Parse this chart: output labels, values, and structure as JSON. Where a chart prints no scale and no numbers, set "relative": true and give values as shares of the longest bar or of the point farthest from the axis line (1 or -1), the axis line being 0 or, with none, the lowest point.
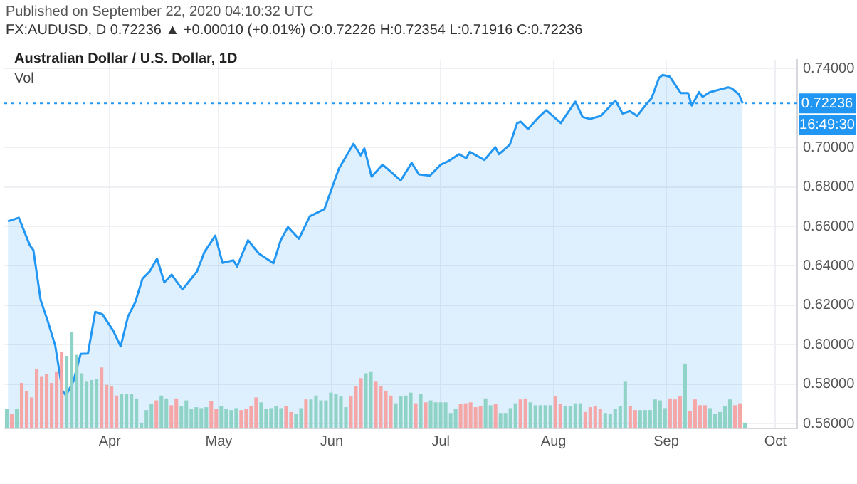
{
  "chart_data": [
    {
      "type": "area",
      "title": "Australian Dollar / U.S. Dollar, 1D",
      "subtitle": "FX:AUDUSD, D 0.72236 ▲ +0.00010 (+0.01%) O:0.72226 H:0.72354 L:0.71916 C:0.72236",
      "annotations": [
        "Published on September 22, 2020 04:10:32 UTC",
        "16:49:30"
      ],
      "x": [
        "2020-03-04",
        "2020-03-07",
        "2020-03-10",
        "2020-03-11",
        "2020-03-13",
        "2020-03-15",
        "2020-03-17",
        "2020-03-19",
        "2020-03-20",
        "2020-03-22",
        "2020-03-24",
        "2020-03-26",
        "2020-03-28",
        "2020-03-30",
        "2020-04-02",
        "2020-04-04",
        "2020-04-06",
        "2020-04-08",
        "2020-04-10",
        "2020-04-12",
        "2020-04-14",
        "2020-04-16",
        "2020-04-18",
        "2020-04-21",
        "2020-04-25",
        "2020-04-27",
        "2020-04-30",
        "2020-05-02",
        "2020-05-05",
        "2020-05-06",
        "2020-05-09",
        "2020-05-12",
        "2020-05-16",
        "2020-05-18",
        "2020-05-20",
        "2020-05-23",
        "2020-05-26",
        "2020-05-30",
        "2020-06-03",
        "2020-06-07",
        "2020-06-09",
        "2020-06-10",
        "2020-06-12",
        "2020-06-15",
        "2020-06-17",
        "2020-06-20",
        "2020-06-23",
        "2020-06-25",
        "2020-06-28",
        "2020-07-01",
        "2020-07-03",
        "2020-07-06",
        "2020-07-08",
        "2020-07-09",
        "2020-07-13",
        "2020-07-16",
        "2020-07-17",
        "2020-07-20",
        "2020-07-22",
        "2020-07-23",
        "2020-07-25",
        "2020-07-28",
        "2020-07-30",
        "2020-08-03",
        "2020-08-07",
        "2020-08-09",
        "2020-08-11",
        "2020-08-14",
        "2020-08-18",
        "2020-08-20",
        "2020-08-22",
        "2020-08-24",
        "2020-08-26",
        "2020-08-28",
        "2020-08-30",
        "2020-08-31",
        "2020-09-02",
        "2020-09-05",
        "2020-09-07",
        "2020-09-08",
        "2020-09-10",
        "2020-09-11",
        "2020-09-13",
        "2020-09-18",
        "2020-09-19",
        "2020-09-21",
        "2020-09-22"
      ],
      "series": [
        {
          "color": "#2196f3",
          "values": [
            0.6626,
            0.6644,
            0.6505,
            0.648,
            0.6226,
            0.6117,
            0.5996,
            0.5766,
            0.5742,
            0.5815,
            0.5953,
            0.5955,
            0.6166,
            0.6154,
            0.6069,
            0.5991,
            0.6142,
            0.6215,
            0.6335,
            0.6372,
            0.6437,
            0.6316,
            0.6355,
            0.628,
            0.6372,
            0.6469,
            0.6553,
            0.6415,
            0.6428,
            0.6396,
            0.653,
            0.6462,
            0.6413,
            0.653,
            0.6597,
            0.6537,
            0.6651,
            0.6687,
            0.6893,
            0.7019,
            0.696,
            0.6995,
            0.6852,
            0.6913,
            0.6881,
            0.6833,
            0.6922,
            0.6864,
            0.6857,
            0.6913,
            0.693,
            0.6966,
            0.6946,
            0.6978,
            0.6937,
            0.7002,
            0.6966,
            0.7015,
            0.7124,
            0.7131,
            0.7094,
            0.7155,
            0.7189,
            0.7124,
            0.7233,
            0.7155,
            0.7145,
            0.716,
            0.7238,
            0.7172,
            0.7184,
            0.716,
            0.7208,
            0.7252,
            0.7353,
            0.7368,
            0.7359,
            0.7276,
            0.7276,
            0.7213,
            0.7281,
            0.7257,
            0.7281,
            0.7305,
            0.73,
            0.7269,
            0.7224
          ]
        }
      ],
      "xlim": [
        "2020-03-03",
        "2020-10-07"
      ],
      "xticks": [
        {
          "value": "2020-04-01",
          "label": "Apr"
        },
        {
          "value": "2020-05-01",
          "label": "May"
        },
        {
          "value": "2020-06-01",
          "label": "Jun"
        },
        {
          "value": "2020-07-01",
          "label": "Jul"
        },
        {
          "value": "2020-08-01",
          "label": "Aug"
        },
        {
          "value": "2020-09-01",
          "label": "Sep"
        },
        {
          "value": "2020-10-01",
          "label": "Oct"
        }
      ],
      "ylim": [
        0.5575,
        0.7445
      ],
      "yticks": [
        {
          "value": 0.56,
          "label": "0.56000"
        },
        {
          "value": 0.58,
          "label": "0.58000"
        },
        {
          "value": 0.6,
          "label": "0.60000"
        },
        {
          "value": 0.62,
          "label": "0.62000"
        },
        {
          "value": 0.64,
          "label": "0.64000"
        },
        {
          "value": 0.66,
          "label": "0.66000"
        },
        {
          "value": 0.68,
          "label": "0.68000"
        },
        {
          "value": 0.7,
          "label": "0.70000"
        },
        {
          "value": 0.74,
          "label": "0.74000"
        }
      ],
      "ref_lines": [
        {
          "axis": "y",
          "value": 0.72236,
          "label": "0.72236",
          "color": "#2196f3",
          "line_style": "dotted"
        }
      ],
      "grid": true,
      "legend": false
    },
    {
      "type": "bar",
      "title": "Vol",
      "relative": true,
      "tick_labels": false,
      "categories": [
        null,
        null,
        null,
        null,
        null,
        null,
        null,
        null,
        null,
        null,
        null,
        null,
        null,
        null,
        null,
        null,
        null,
        null,
        null,
        null,
        null,
        null,
        null,
        null,
        null,
        null,
        null,
        null,
        null,
        null,
        null,
        null,
        null,
        null,
        null,
        null,
        null,
        null,
        null,
        null,
        null,
        null,
        null,
        null,
        null,
        null,
        null,
        null,
        null,
        null,
        null,
        null,
        null,
        null,
        null,
        null,
        null,
        null,
        null,
        null,
        null,
        null,
        null,
        null,
        null,
        null,
        null,
        null,
        null,
        null,
        null,
        null,
        null,
        null,
        null,
        null,
        null,
        null,
        null,
        null,
        null,
        null,
        null,
        null,
        null,
        null,
        null,
        null,
        null,
        null,
        null,
        null,
        null,
        null,
        null,
        null,
        null,
        null,
        null,
        null,
        null,
        null,
        null,
        null,
        null,
        null,
        null,
        null,
        null,
        null,
        null,
        null,
        null,
        null,
        null,
        null,
        null,
        null,
        null,
        null,
        null,
        null,
        null,
        null,
        null,
        null,
        null,
        null,
        null,
        null,
        null,
        null,
        null,
        null,
        null,
        null,
        null,
        null,
        null,
        null,
        null,
        null,
        null,
        null,
        null,
        null,
        null,
        null,
        null
      ],
      "values": [
        0.2,
        0.15,
        0.2,
        0.47,
        0.39,
        0.32,
        0.61,
        0.54,
        0.56,
        0.47,
        0.59,
        0.79,
        0.75,
        1,
        0.76,
        0.57,
        0.49,
        0.5,
        0.51,
        0.63,
        0.45,
        0.44,
        0.34,
        0.36,
        0.36,
        0.36,
        0.31,
        0.06,
        0.19,
        0.25,
        0.29,
        0.34,
        0.31,
        0.24,
        0.31,
        0.23,
        0.29,
        0.2,
        0.22,
        0.21,
        0.22,
        0.28,
        0.2,
        0.23,
        0.2,
        0.19,
        0.21,
        0.19,
        0.2,
        0.23,
        0.32,
        0.27,
        0.2,
        0.21,
        0.23,
        0.21,
        0.23,
        0.17,
        0.15,
        0.21,
        0.3,
        0.3,
        0.34,
        0.29,
        0.29,
        0.37,
        0.36,
        0.33,
        0.22,
        0.33,
        0.44,
        0.52,
        0.57,
        0.59,
        0.49,
        0.44,
        0.39,
        0.34,
        0.26,
        0.33,
        0.34,
        0.37,
        0.26,
        0.36,
        0.27,
        0.29,
        0.27,
        0.27,
        0.27,
        0.16,
        0.2,
        0.25,
        0.26,
        0.27,
        0.22,
        0.23,
        0.31,
        0.24,
        0.25,
        0.16,
        0.16,
        0.21,
        0.26,
        0.3,
        0.31,
        0.27,
        0.24,
        0.24,
        0.24,
        0.24,
        0.33,
        0.25,
        0.23,
        0.23,
        0.26,
        0.26,
        0.17,
        0.22,
        0.23,
        0.2,
        0.16,
        0.15,
        0.2,
        0.23,
        0.49,
        0.23,
        0.19,
        0.19,
        0.19,
        0.19,
        0.3,
        0.29,
        0.21,
        0.31,
        0.3,
        0.33,
        0.67,
        0.18,
        0.3,
        0.24,
        0.24,
        0.21,
        0.15,
        0.17,
        0.23,
        0.3,
        0.24,
        0.26,
        0.06
      ],
      "colors": [
        "#8fd3c7",
        "#f5a6a6",
        "#8fd3c7",
        "#f5a6a6",
        "#f5a6a6",
        "#f5a6a6",
        "#f5a6a6",
        "#f5a6a6",
        "#f5a6a6",
        "#f5a6a6",
        "#f5a6a6",
        "#f5a6a6",
        "#8fd3c7",
        "#8fd3c7",
        "#8fd3c7",
        "#8fd3c7",
        "#8fd3c7",
        "#8fd3c7",
        "#8fd3c7",
        "#f5a6a6",
        "#f5a6a6",
        "#f5a6a6",
        "#f5a6a6",
        "#8fd3c7",
        "#8fd3c7",
        "#8fd3c7",
        "#8fd3c7",
        "#8fd3c7",
        "#8fd3c7",
        "#8fd3c7",
        "#f5a6a6",
        "#8fd3c7",
        "#8fd3c7",
        "#f5a6a6",
        "#f5a6a6",
        "#8fd3c7",
        "#8fd3c7",
        "#8fd3c7",
        "#8fd3c7",
        "#8fd3c7",
        "#8fd3c7",
        "#f5a6a6",
        "#f5a6a6",
        "#8fd3c7",
        "#8fd3c7",
        "#8fd3c7",
        "#8fd3c7",
        "#f5a6a6",
        "#f5a6a6",
        "#f5a6a6",
        "#f5a6a6",
        "#8fd3c7",
        "#8fd3c7",
        "#8fd3c7",
        "#8fd3c7",
        "#8fd3c7",
        "#f5a6a6",
        "#f5a6a6",
        "#8fd3c7",
        "#8fd3c7",
        "#f5a6a6",
        "#8fd3c7",
        "#8fd3c7",
        "#8fd3c7",
        "#8fd3c7",
        "#8fd3c7",
        "#8fd3c7",
        "#8fd3c7",
        "#8fd3c7",
        "#f5a6a6",
        "#f5a6a6",
        "#f5a6a6",
        "#8fd3c7",
        "#8fd3c7",
        "#f5a6a6",
        "#f5a6a6",
        "#f5a6a6",
        "#f5a6a6",
        "#8fd3c7",
        "#8fd3c7",
        "#8fd3c7",
        "#8fd3c7",
        "#f5a6a6",
        "#8fd3c7",
        "#f5a6a6",
        "#8fd3c7",
        "#8fd3c7",
        "#8fd3c7",
        "#8fd3c7",
        "#8fd3c7",
        "#8fd3c7",
        "#f5a6a6",
        "#f5a6a6",
        "#f5a6a6",
        "#f5a6a6",
        "#f5a6a6",
        "#8fd3c7",
        "#8fd3c7",
        "#f5a6a6",
        "#8fd3c7",
        "#8fd3c7",
        "#8fd3c7",
        "#8fd3c7",
        "#f5a6a6",
        "#f5a6a6",
        "#8fd3c7",
        "#8fd3c7",
        "#8fd3c7",
        "#8fd3c7",
        "#8fd3c7",
        "#f5a6a6",
        "#f5a6a6",
        "#8fd3c7",
        "#8fd3c7",
        "#8fd3c7",
        "#8fd3c7",
        "#f5a6a6",
        "#f5a6a6",
        "#f5a6a6",
        "#f5a6a6",
        "#8fd3c7",
        "#8fd3c7",
        "#8fd3c7",
        "#8fd3c7",
        "#8fd3c7",
        "#f5a6a6",
        "#f5a6a6",
        "#8fd3c7",
        "#8fd3c7",
        "#8fd3c7",
        "#8fd3c7",
        "#8fd3c7",
        "#8fd3c7",
        "#f5a6a6",
        "#f5a6a6",
        "#f5a6a6",
        "#8fd3c7",
        "#f5a6a6",
        "#f5a6a6",
        "#f5a6a6",
        "#f5a6a6",
        "#8fd3c7",
        "#8fd3c7",
        "#8fd3c7",
        "#8fd3c7",
        "#8fd3c7",
        "#f5a6a6",
        "#f5a6a6",
        "#8fd3c7"
      ],
      "legend": false
    }
  ]
}
